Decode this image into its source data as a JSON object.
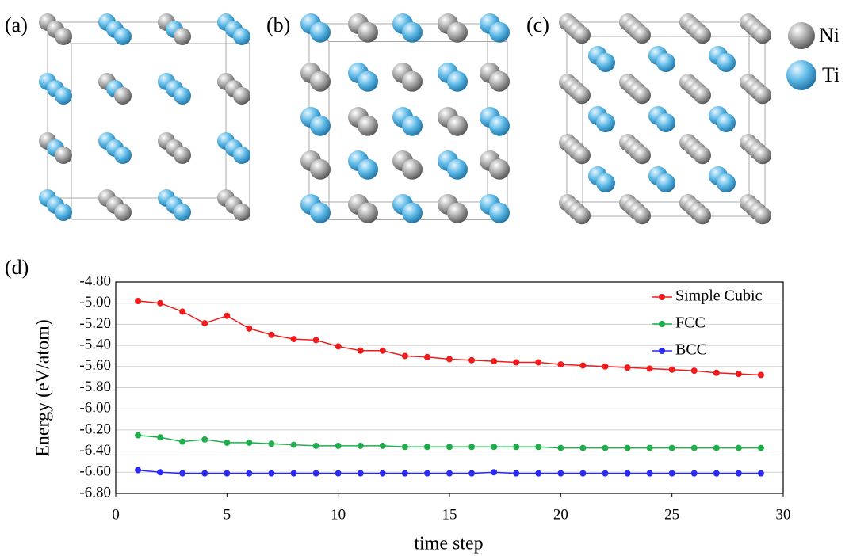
{
  "panels": [
    "(a)",
    "(b)",
    "(c)"
  ],
  "atom_legend": [
    "Ni",
    "Ti"
  ],
  "chart_data": {
    "type": "line",
    "label": "(d)",
    "x_label": "time step",
    "y_label": "Energy (eV/atom)",
    "x": [
      1,
      2,
      3,
      4,
      5,
      6,
      7,
      8,
      9,
      10,
      11,
      12,
      13,
      14,
      15,
      16,
      17,
      18,
      19,
      20,
      21,
      22,
      23,
      24,
      25,
      26,
      27,
      28,
      29
    ],
    "series": [
      {
        "name": "Simple Cubic",
        "color": "#ee1c1c",
        "values": [
          -4.98,
          -5.0,
          -5.08,
          -5.19,
          -5.12,
          -5.24,
          -5.3,
          -5.34,
          -5.35,
          -5.41,
          -5.45,
          -5.45,
          -5.5,
          -5.51,
          -5.53,
          -5.54,
          -5.55,
          -5.56,
          -5.56,
          -5.58,
          -5.59,
          -5.6,
          -5.61,
          -5.62,
          -5.63,
          -5.64,
          -5.66,
          -5.67,
          -5.68
        ]
      },
      {
        "name": "FCC",
        "color": "#1fae4b",
        "values": [
          -6.25,
          -6.27,
          -6.31,
          -6.29,
          -6.32,
          -6.32,
          -6.33,
          -6.34,
          -6.35,
          -6.35,
          -6.35,
          -6.35,
          -6.36,
          -6.36,
          -6.36,
          -6.36,
          -6.36,
          -6.36,
          -6.36,
          -6.37,
          -6.37,
          -6.37,
          -6.37,
          -6.37,
          -6.37,
          -6.37,
          -6.37,
          -6.37,
          -6.37
        ]
      },
      {
        "name": "BCC",
        "color": "#2a2af0",
        "values": [
          -6.58,
          -6.6,
          -6.61,
          -6.61,
          -6.61,
          -6.61,
          -6.61,
          -6.61,
          -6.61,
          -6.61,
          -6.61,
          -6.61,
          -6.61,
          -6.61,
          -6.61,
          -6.61,
          -6.6,
          -6.61,
          -6.61,
          -6.61,
          -6.61,
          -6.61,
          -6.61,
          -6.61,
          -6.61,
          -6.61,
          -6.61,
          -6.61,
          -6.61
        ]
      }
    ],
    "xlim": [
      0,
      30
    ],
    "xticks": [
      0,
      5,
      10,
      15,
      20,
      25,
      30
    ],
    "ylim": [
      -6.8,
      -4.8
    ],
    "yticks": [
      {
        "value": -6.8,
        "label": "-6.80"
      },
      {
        "value": -6.6,
        "label": "-6.60"
      },
      {
        "value": -6.4,
        "label": "-6.40"
      },
      {
        "value": -6.2,
        "label": "-6.20"
      },
      {
        "value": -6.0,
        "label": "-6.00"
      },
      {
        "value": -5.8,
        "label": "-5.80"
      },
      {
        "value": -5.6,
        "label": "-5.60"
      },
      {
        "value": -5.4,
        "label": "-5.40"
      },
      {
        "value": -5.2,
        "label": "-5.20"
      },
      {
        "value": -5.0,
        "label": "-5.00"
      },
      {
        "value": -4.8,
        "label": "-4.80"
      }
    ],
    "grid": true,
    "legend": "upper right"
  }
}
